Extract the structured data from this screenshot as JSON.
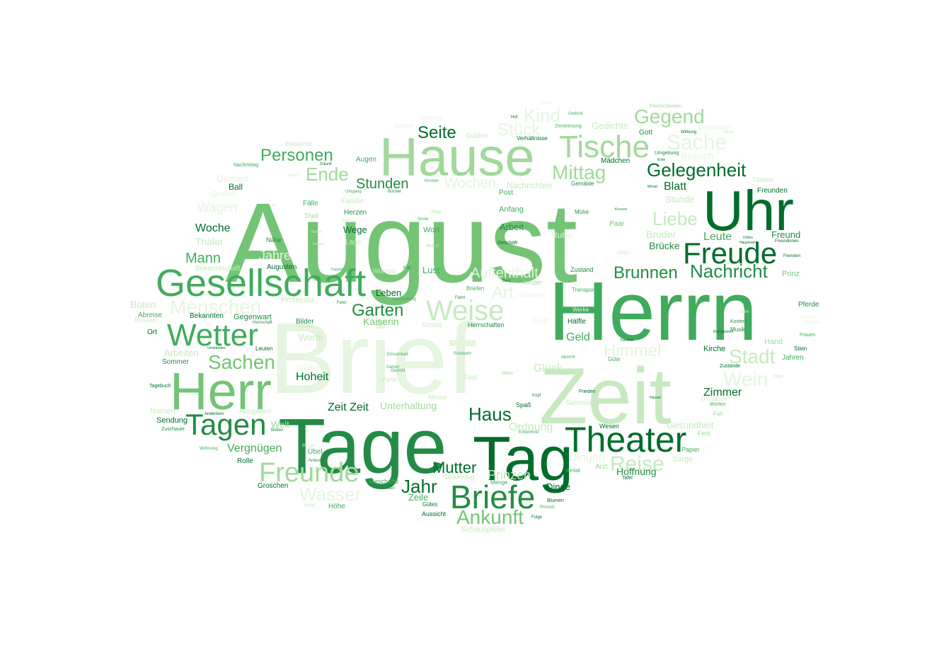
{
  "palette": {
    "g1": "#006d2c",
    "g2": "#238b45",
    "g3": "#41ab5d",
    "g4": "#74c476",
    "g5": "#a1d99b",
    "g6": "#c7e9c0",
    "g7": "#e5f5e0"
  },
  "words": [
    {
      "text": "Brief",
      "weight": 120,
      "c": "g7"
    },
    {
      "text": "August",
      "weight": 118,
      "c": "g4"
    },
    {
      "text": "Herrn",
      "weight": 95,
      "c": "g3"
    },
    {
      "text": "Zeit",
      "weight": 92,
      "c": "g6"
    },
    {
      "text": "Tage",
      "weight": 82,
      "c": "g2"
    },
    {
      "text": "Tag",
      "weight": 66,
      "c": "g1"
    },
    {
      "text": "Uhr",
      "weight": 60,
      "c": "g1"
    },
    {
      "text": "Hause",
      "weight": 58,
      "c": "g5"
    },
    {
      "text": "Herr",
      "weight": 54,
      "c": "g4"
    },
    {
      "text": "Gesellschaft",
      "weight": 48,
      "c": "g3"
    },
    {
      "text": "Theater",
      "weight": 44,
      "c": "g1"
    },
    {
      "text": "Briefe",
      "weight": 42,
      "c": "g2"
    },
    {
      "text": "Tische",
      "weight": 40,
      "c": "g5"
    },
    {
      "text": "Wetter",
      "weight": 40,
      "c": "g3"
    },
    {
      "text": "Freude",
      "weight": 38,
      "c": "g1"
    },
    {
      "text": "Tagen",
      "weight": 36,
      "c": "g2"
    },
    {
      "text": "Weise",
      "weight": 34,
      "c": "g6"
    },
    {
      "text": "Freunde",
      "weight": 33,
      "c": "g5"
    },
    {
      "text": "Reise",
      "weight": 28,
      "c": "g6"
    },
    {
      "text": "Sachen",
      "weight": 27,
      "c": "g4"
    },
    {
      "text": "Menschen",
      "weight": 26,
      "c": "g7"
    },
    {
      "text": "Gegend",
      "weight": 25,
      "c": "g5"
    },
    {
      "text": "Gelegenheit",
      "weight": 25,
      "c": "g1"
    },
    {
      "text": "Nachricht",
      "weight": 25,
      "c": "g2"
    },
    {
      "text": "Mittag",
      "weight": 24,
      "c": "g5"
    },
    {
      "text": "Ankunft",
      "weight": 24,
      "c": "g4"
    },
    {
      "text": "Stadt",
      "weight": 24,
      "c": "g6"
    },
    {
      "text": "Brunnen",
      "weight": 23,
      "c": "g2"
    },
    {
      "text": "Garten",
      "weight": 23,
      "c": "g2"
    },
    {
      "text": "Liebe",
      "weight": 23,
      "c": "g6"
    },
    {
      "text": "Sache",
      "weight": 23,
      "c": "g7"
    },
    {
      "text": "Wein",
      "weight": 23,
      "c": "g7"
    },
    {
      "text": "Wasser",
      "weight": 23,
      "c": "g7"
    },
    {
      "text": "Personen",
      "weight": 22,
      "c": "g3"
    },
    {
      "text": "Kind",
      "weight": 22,
      "c": "g7"
    },
    {
      "text": "Ende",
      "weight": 22,
      "c": "g5"
    },
    {
      "text": "Seite",
      "weight": 21,
      "c": "g1"
    },
    {
      "text": "Jahr",
      "weight": 22,
      "c": "g1"
    },
    {
      "text": "Haus",
      "weight": 22,
      "c": "g1"
    },
    {
      "text": "Mutter",
      "weight": 21,
      "c": "g1"
    },
    {
      "text": "Stück",
      "weight": 21,
      "c": "g7"
    },
    {
      "text": "Himmel",
      "weight": 21,
      "c": "g7"
    },
    {
      "text": "Art",
      "weight": 21,
      "c": "g7"
    },
    {
      "text": "Auftenthalt",
      "weight": 20,
      "c": "g7"
    },
    {
      "text": "Stunden",
      "weight": 19,
      "c": "g2"
    },
    {
      "text": "Mann",
      "weight": 19,
      "c": "g3"
    },
    {
      "text": "Wochen",
      "weight": 18,
      "c": "g7"
    },
    {
      "text": "Jahre",
      "weight": 17,
      "c": "g7"
    },
    {
      "text": "Prinzen",
      "weight": 17,
      "c": "g6"
    },
    {
      "text": "Wagen",
      "weight": 17,
      "c": "g7"
    },
    {
      "text": "Hoheit",
      "weight": 16,
      "c": "g1"
    },
    {
      "text": "Zimmer",
      "weight": 16,
      "c": "g1"
    },
    {
      "text": "Gedichte",
      "weight": 13,
      "c": "g6"
    },
    {
      "text": "Vergnügen",
      "weight": 16,
      "c": "g3"
    },
    {
      "text": "Glück",
      "weight": 16,
      "c": "g6"
    },
    {
      "text": "Woche",
      "weight": 16,
      "c": "g1"
    },
    {
      "text": "Blatt",
      "weight": 16,
      "c": "g1"
    },
    {
      "text": "Leute",
      "weight": 16,
      "c": "g3"
    },
    {
      "text": "Geld",
      "weight": 15,
      "c": "g3"
    },
    {
      "text": "Ordnung",
      "weight": 15,
      "c": "g6"
    },
    {
      "text": "Unterhaltung",
      "weight": 14,
      "c": "g5"
    },
    {
      "text": "Dingen",
      "weight": 15,
      "c": "g7"
    },
    {
      "text": "Zeit Zeit",
      "weight": 15,
      "c": "g1"
    },
    {
      "text": "Kaiserin",
      "weight": 14,
      "c": "g4"
    },
    {
      "text": "Bruder",
      "weight": 14,
      "c": "g6"
    },
    {
      "text": "Brücke",
      "weight": 14,
      "c": "g2"
    },
    {
      "text": "Hoffnung",
      "weight": 14,
      "c": "g2"
    },
    {
      "text": "Dinge",
      "weight": 13,
      "c": "g1"
    },
    {
      "text": "Damen",
      "weight": 14,
      "c": "g7"
    },
    {
      "text": "Besuch",
      "weight": 14,
      "c": "g7"
    },
    {
      "text": "Boten",
      "weight": 14,
      "c": "g6"
    },
    {
      "text": "Leben",
      "weight": 13,
      "c": "g1"
    },
    {
      "text": "Lust",
      "weight": 13,
      "c": "g3"
    },
    {
      "text": "Arbeiten",
      "weight": 13,
      "c": "g6"
    },
    {
      "text": "Thaler",
      "weight": 14,
      "c": "g6"
    },
    {
      "text": "Gesundheit",
      "weight": 13,
      "c": "g6"
    },
    {
      "text": "Freund",
      "weight": 13,
      "c": "g2"
    },
    {
      "text": "Wege",
      "weight": 13,
      "c": "g1"
    },
    {
      "text": "Welt",
      "weight": 13,
      "c": "g5"
    },
    {
      "text": "Zeile",
      "weight": 13,
      "c": "g3"
    },
    {
      "text": "Stunde",
      "weight": 13,
      "c": "g6"
    },
    {
      "text": "Kirche",
      "weight": 11,
      "c": "g1"
    },
    {
      "text": "Arbeit",
      "weight": 13,
      "c": "g2"
    },
    {
      "text": "Wort",
      "weight": 11,
      "c": "g3"
    },
    {
      "text": "Schauspieler",
      "weight": 11,
      "c": "g6"
    },
    {
      "text": "Geschäfte",
      "weight": 9,
      "c": "g3"
    },
    {
      "text": "Worte",
      "weight": 13,
      "c": "g6"
    },
    {
      "text": "Winter",
      "weight": 12,
      "c": "g7"
    },
    {
      "text": "Ball",
      "weight": 12,
      "c": "g1"
    },
    {
      "text": "Sorge",
      "weight": 11,
      "c": "g6"
    },
    {
      "text": "Augen",
      "weight": 10,
      "c": "g3"
    },
    {
      "text": "Höhe",
      "weight": 10,
      "c": "g3"
    },
    {
      "text": "Rolle",
      "weight": 10,
      "c": "g1"
    },
    {
      "text": "Sendung",
      "weight": 11,
      "c": "g1"
    },
    {
      "text": "Herzen",
      "weight": 10,
      "c": "g2"
    },
    {
      "text": "Anfang",
      "weight": 11,
      "c": "g3"
    },
    {
      "text": "Post",
      "weight": 10,
      "c": "g3"
    },
    {
      "text": "Sommer",
      "weight": 10,
      "c": "g2"
    },
    {
      "text": "Gegenwart",
      "weight": 11,
      "c": "g2"
    },
    {
      "text": "Bekannten",
      "weight": 10,
      "c": "g1"
    },
    {
      "text": "Gott",
      "weight": 10,
      "c": "g2"
    },
    {
      "text": "Mädchen",
      "weight": 10,
      "c": "g1"
    },
    {
      "text": "Paar",
      "weight": 10,
      "c": "g4"
    },
    {
      "text": "Messe",
      "weight": 9,
      "c": "g6"
    },
    {
      "text": "Prinz",
      "weight": 11,
      "c": "g4"
    },
    {
      "text": "Pferde",
      "weight": 10,
      "c": "g2"
    },
    {
      "text": "Hand",
      "weight": 11,
      "c": "g5"
    },
    {
      "text": "Jahren",
      "weight": 10,
      "c": "g3"
    },
    {
      "text": "Stein",
      "weight": 8,
      "c": "g1"
    },
    {
      "text": "Nähe",
      "weight": 9,
      "c": "g2"
    },
    {
      "text": "Ort",
      "weight": 10,
      "c": "g1"
    },
    {
      "text": "Russen",
      "weight": 9,
      "c": "g6"
    },
    {
      "text": "Abreise",
      "weight": 10,
      "c": "g3"
    },
    {
      "text": "Professor",
      "weight": 11,
      "c": "g6"
    },
    {
      "text": "Bekanntschaft",
      "weight": 10,
      "c": "g6"
    },
    {
      "text": "Augusten",
      "weight": 10,
      "c": "g1"
    },
    {
      "text": "Familie",
      "weight": 10,
      "c": "g6"
    },
    {
      "text": "Fälle",
      "weight": 10,
      "c": "g3"
    },
    {
      "text": "Theil",
      "weight": 9,
      "c": "g5"
    },
    {
      "text": "Lage",
      "weight": 10,
      "c": "g6"
    },
    {
      "text": "Bilder",
      "weight": 10,
      "c": "g2"
    },
    {
      "text": "Übel",
      "weight": 10,
      "c": "g3"
    },
    {
      "text": "Groschen",
      "weight": 10,
      "c": "g1"
    },
    {
      "text": "Namen",
      "weight": 11,
      "c": "g6"
    },
    {
      "text": "Ausgaben",
      "weight": 10,
      "c": "g6"
    },
    {
      "text": "Quartier",
      "weight": 10,
      "c": "g7"
    },
    {
      "text": "Nachrichten",
      "weight": 12,
      "c": "g6"
    },
    {
      "text": "Gulden",
      "weight": 10,
      "c": "g6"
    },
    {
      "text": "Bekannte",
      "weight": 9,
      "c": "g6"
    },
    {
      "text": "Gedanken",
      "weight": 10,
      "c": "g7"
    },
    {
      "text": "Töchter",
      "weight": 9,
      "c": "g6"
    },
    {
      "text": "Freunden",
      "weight": 10,
      "c": "g1"
    },
    {
      "text": "Zustand",
      "weight": 9,
      "c": "g2"
    },
    {
      "text": "Transport",
      "weight": 8,
      "c": "g3"
    },
    {
      "text": "Mühe",
      "weight": 8,
      "c": "g2"
    },
    {
      "text": "Wunsch",
      "weight": 9,
      "c": "g6"
    },
    {
      "text": "Kinder",
      "weight": 9,
      "c": "g5"
    },
    {
      "text": "Fest",
      "weight": 9,
      "c": "g5"
    },
    {
      "text": "Papier",
      "weight": 9,
      "c": "g3"
    },
    {
      "text": "Wesen",
      "weight": 9,
      "c": "g1"
    },
    {
      "text": "Arzt",
      "weight": 10,
      "c": "g5"
    },
    {
      "text": "Spaß",
      "weight": 9,
      "c": "g1"
    },
    {
      "text": "Sammlung",
      "weight": 10,
      "c": "g6"
    },
    {
      "text": "Hälfte",
      "weight": 10,
      "c": "g1"
    },
    {
      "text": "Gemälde",
      "weight": 8,
      "c": "g2"
    },
    {
      "text": "Umgebung",
      "weight": 7,
      "c": "g2"
    },
    {
      "text": "Ruhe",
      "weight": 12,
      "c": "g7"
    },
    {
      "text": "Geist",
      "weight": 7,
      "c": "g6"
    },
    {
      "text": "Herrschaften",
      "weight": 9,
      "c": "g2"
    },
    {
      "text": "Schloß",
      "weight": 9,
      "c": "g6"
    },
    {
      "text": "Briefen",
      "weight": 8,
      "c": "g3"
    },
    {
      "text": "Aussicht",
      "weight": 9,
      "c": "g1"
    },
    {
      "text": "Gütes",
      "weight": 8,
      "c": "g1"
    },
    {
      "text": "Geburtstag",
      "weight": 9,
      "c": "g6"
    },
    {
      "text": "Menge",
      "weight": 8,
      "c": "g3"
    },
    {
      "text": "Saal",
      "weight": 10,
      "c": "g6"
    },
    {
      "text": "Musik",
      "weight": 8,
      "c": "g2"
    },
    {
      "text": "Frauen",
      "weight": 7,
      "c": "g3"
    },
    {
      "text": "Kosten",
      "weight": 7,
      "c": "g2"
    },
    {
      "text": "Geschäft",
      "weight": 7,
      "c": "g1"
    },
    {
      "text": "Verhältnisse",
      "weight": 8,
      "c": "g1"
    },
    {
      "text": "Zerstreuung",
      "weight": 7,
      "c": "g3"
    },
    {
      "text": "Wirkung",
      "weight": 6,
      "c": "g1"
    },
    {
      "text": "Feierlichkeiten",
      "weight": 7,
      "c": "g5"
    },
    {
      "text": "Zeiten",
      "weight": 10,
      "c": "g7"
    },
    {
      "text": "Fenster",
      "weight": 9,
      "c": "g7"
    },
    {
      "text": "Nachmittag",
      "weight": 7,
      "c": "g3"
    },
    {
      "text": "Umgang",
      "weight": 6,
      "c": "g3"
    },
    {
      "text": "Bücher",
      "weight": 6,
      "c": "g2"
    },
    {
      "text": "Kirchen",
      "weight": 6,
      "c": "g3"
    },
    {
      "text": "Einsamkeit",
      "weight": 6,
      "c": "g3"
    },
    {
      "text": "Gesicht",
      "weight": 6,
      "c": "g3"
    },
    {
      "text": "Partie",
      "weight": 8,
      "c": "g6"
    },
    {
      "text": "Fahrt",
      "weight": 6,
      "c": "g2"
    },
    {
      "text": "Feier",
      "weight": 6,
      "c": "g2"
    },
    {
      "text": "Tagebuch",
      "weight": 7,
      "c": "g1"
    },
    {
      "text": "Leuten",
      "weight": 8,
      "c": "g1"
    },
    {
      "text": "Zuschauer",
      "weight": 7,
      "c": "g2"
    },
    {
      "text": "Blätter",
      "weight": 6,
      "c": "g2"
    },
    {
      "text": "Andenken",
      "weight": 6,
      "c": "g1"
    },
    {
      "text": "Antwort",
      "weight": 6,
      "c": "g2"
    },
    {
      "text": "Händen",
      "weight": 6,
      "c": "g2"
    },
    {
      "text": "Wohnung",
      "weight": 6,
      "c": "g3"
    },
    {
      "text": "Berfall",
      "weight": 7,
      "c": "g3"
    },
    {
      "text": "Blumen",
      "weight": 7,
      "c": "g1"
    },
    {
      "text": "Folge",
      "weight": 6,
      "c": "g1"
    },
    {
      "text": "Tafel",
      "weight": 7,
      "c": "g1"
    },
    {
      "text": "Kopf",
      "weight": 6,
      "c": "g2"
    },
    {
      "text": "Frieden",
      "weight": 7,
      "c": "g1"
    },
    {
      "text": "Willen",
      "weight": 6,
      "c": "g5"
    },
    {
      "text": "Zustände",
      "weight": 7,
      "c": "g1"
    },
    {
      "text": "Umstände",
      "weight": 8,
      "c": "g6"
    },
    {
      "text": "Worten",
      "weight": 7,
      "c": "g3"
    },
    {
      "text": "Fall",
      "weight": 8,
      "c": "g5"
    },
    {
      "text": "Orte",
      "weight": 7,
      "c": "g6"
    },
    {
      "text": "Freundinnen",
      "weight": 6,
      "c": "g1"
    },
    {
      "text": "Fremden",
      "weight": 6,
      "c": "g1"
    },
    {
      "text": "Kaiser",
      "weight": 8,
      "c": "g7"
    },
    {
      "text": "Schaden",
      "weight": 6,
      "c": "g7"
    },
    {
      "text": "Güte",
      "weight": 8,
      "c": "g3"
    },
    {
      "text": "Begriff",
      "weight": 8,
      "c": "g7"
    },
    {
      "text": "Werke",
      "weight": 8,
      "c": "g7"
    },
    {
      "text": "Pflanzen",
      "weight": 9,
      "c": "g7"
    },
    {
      "text": "Entwohner",
      "weight": 6,
      "c": "g3"
    },
    {
      "text": "Prinzeß",
      "weight": 6,
      "c": "g3"
    },
    {
      "text": "Gang",
      "weight": 6,
      "c": "g6"
    },
    {
      "text": "Hof",
      "weight": 6,
      "c": "g1"
    },
    {
      "text": "Gedicht",
      "weight": 6,
      "c": "g3"
    },
    {
      "text": "Herrschaft",
      "weight": 6,
      "c": "g2"
    },
    {
      "text": "Stellen",
      "weight": 6,
      "c": "g7"
    },
    {
      "text": "Absicht",
      "weight": 6,
      "c": "g3"
    },
    {
      "text": "Hauser",
      "weight": 5,
      "c": "g1"
    },
    {
      "text": "Platz",
      "weight": 6,
      "c": "g5"
    },
    {
      "text": "Sinne",
      "weight": 6,
      "c": "g3"
    },
    {
      "text": "Anstalt",
      "weight": 6,
      "c": "g5"
    },
    {
      "text": "Haushaltung",
      "weight": 6,
      "c": "g3"
    },
    {
      "text": "Rückkehr",
      "weight": 6,
      "c": "g3"
    },
    {
      "text": "Umständen",
      "weight": 5,
      "c": "g1"
    },
    {
      "text": "Fuß",
      "weight": 6,
      "c": "g2"
    },
    {
      "text": "Zukunft",
      "weight": 5,
      "c": "g1"
    },
    {
      "text": "Wirtung",
      "weight": 6,
      "c": "g6"
    },
    {
      "text": "Gärten",
      "weight": 6,
      "c": "g3"
    },
    {
      "text": "Bühne",
      "weight": 6,
      "c": "g6"
    },
    {
      "text": "Buch",
      "weight": 5,
      "c": "g1"
    },
    {
      "text": "Ecke",
      "weight": 5,
      "c": "g1"
    },
    {
      "text": "Orden",
      "weight": 5,
      "c": "g1"
    },
    {
      "text": "Hauptsache",
      "weight": 5,
      "c": "g1"
    },
    {
      "text": "Kleinigkeiten",
      "weight": 5,
      "c": "g1"
    },
    {
      "text": "Familien",
      "weight": 5,
      "c": "g1"
    },
    {
      "text": "Monat",
      "weight": 5,
      "c": "g1"
    },
    {
      "text": "Kreuzer",
      "weight": 5,
      "c": "g2"
    },
    {
      "text": "Krieg",
      "weight": 5,
      "c": "g6"
    },
    {
      "text": "Baden",
      "weight": 5,
      "c": "g6"
    },
    {
      "text": "Schuld",
      "weight": 5,
      "c": "g6"
    },
    {
      "text": "Trappen",
      "weight": 5,
      "c": "g3"
    },
    {
      "text": "Ei",
      "weight": 5,
      "c": "g6"
    },
    {
      "text": "Frühstück",
      "weight": 6,
      "c": "g6"
    },
    {
      "text": "Zug",
      "weight": 5,
      "c": "g6"
    },
    {
      "text": "Hitze",
      "weight": 6,
      "c": "g6"
    },
    {
      "text": "Mark",
      "weight": 6,
      "c": "g6"
    }
  ]
}
